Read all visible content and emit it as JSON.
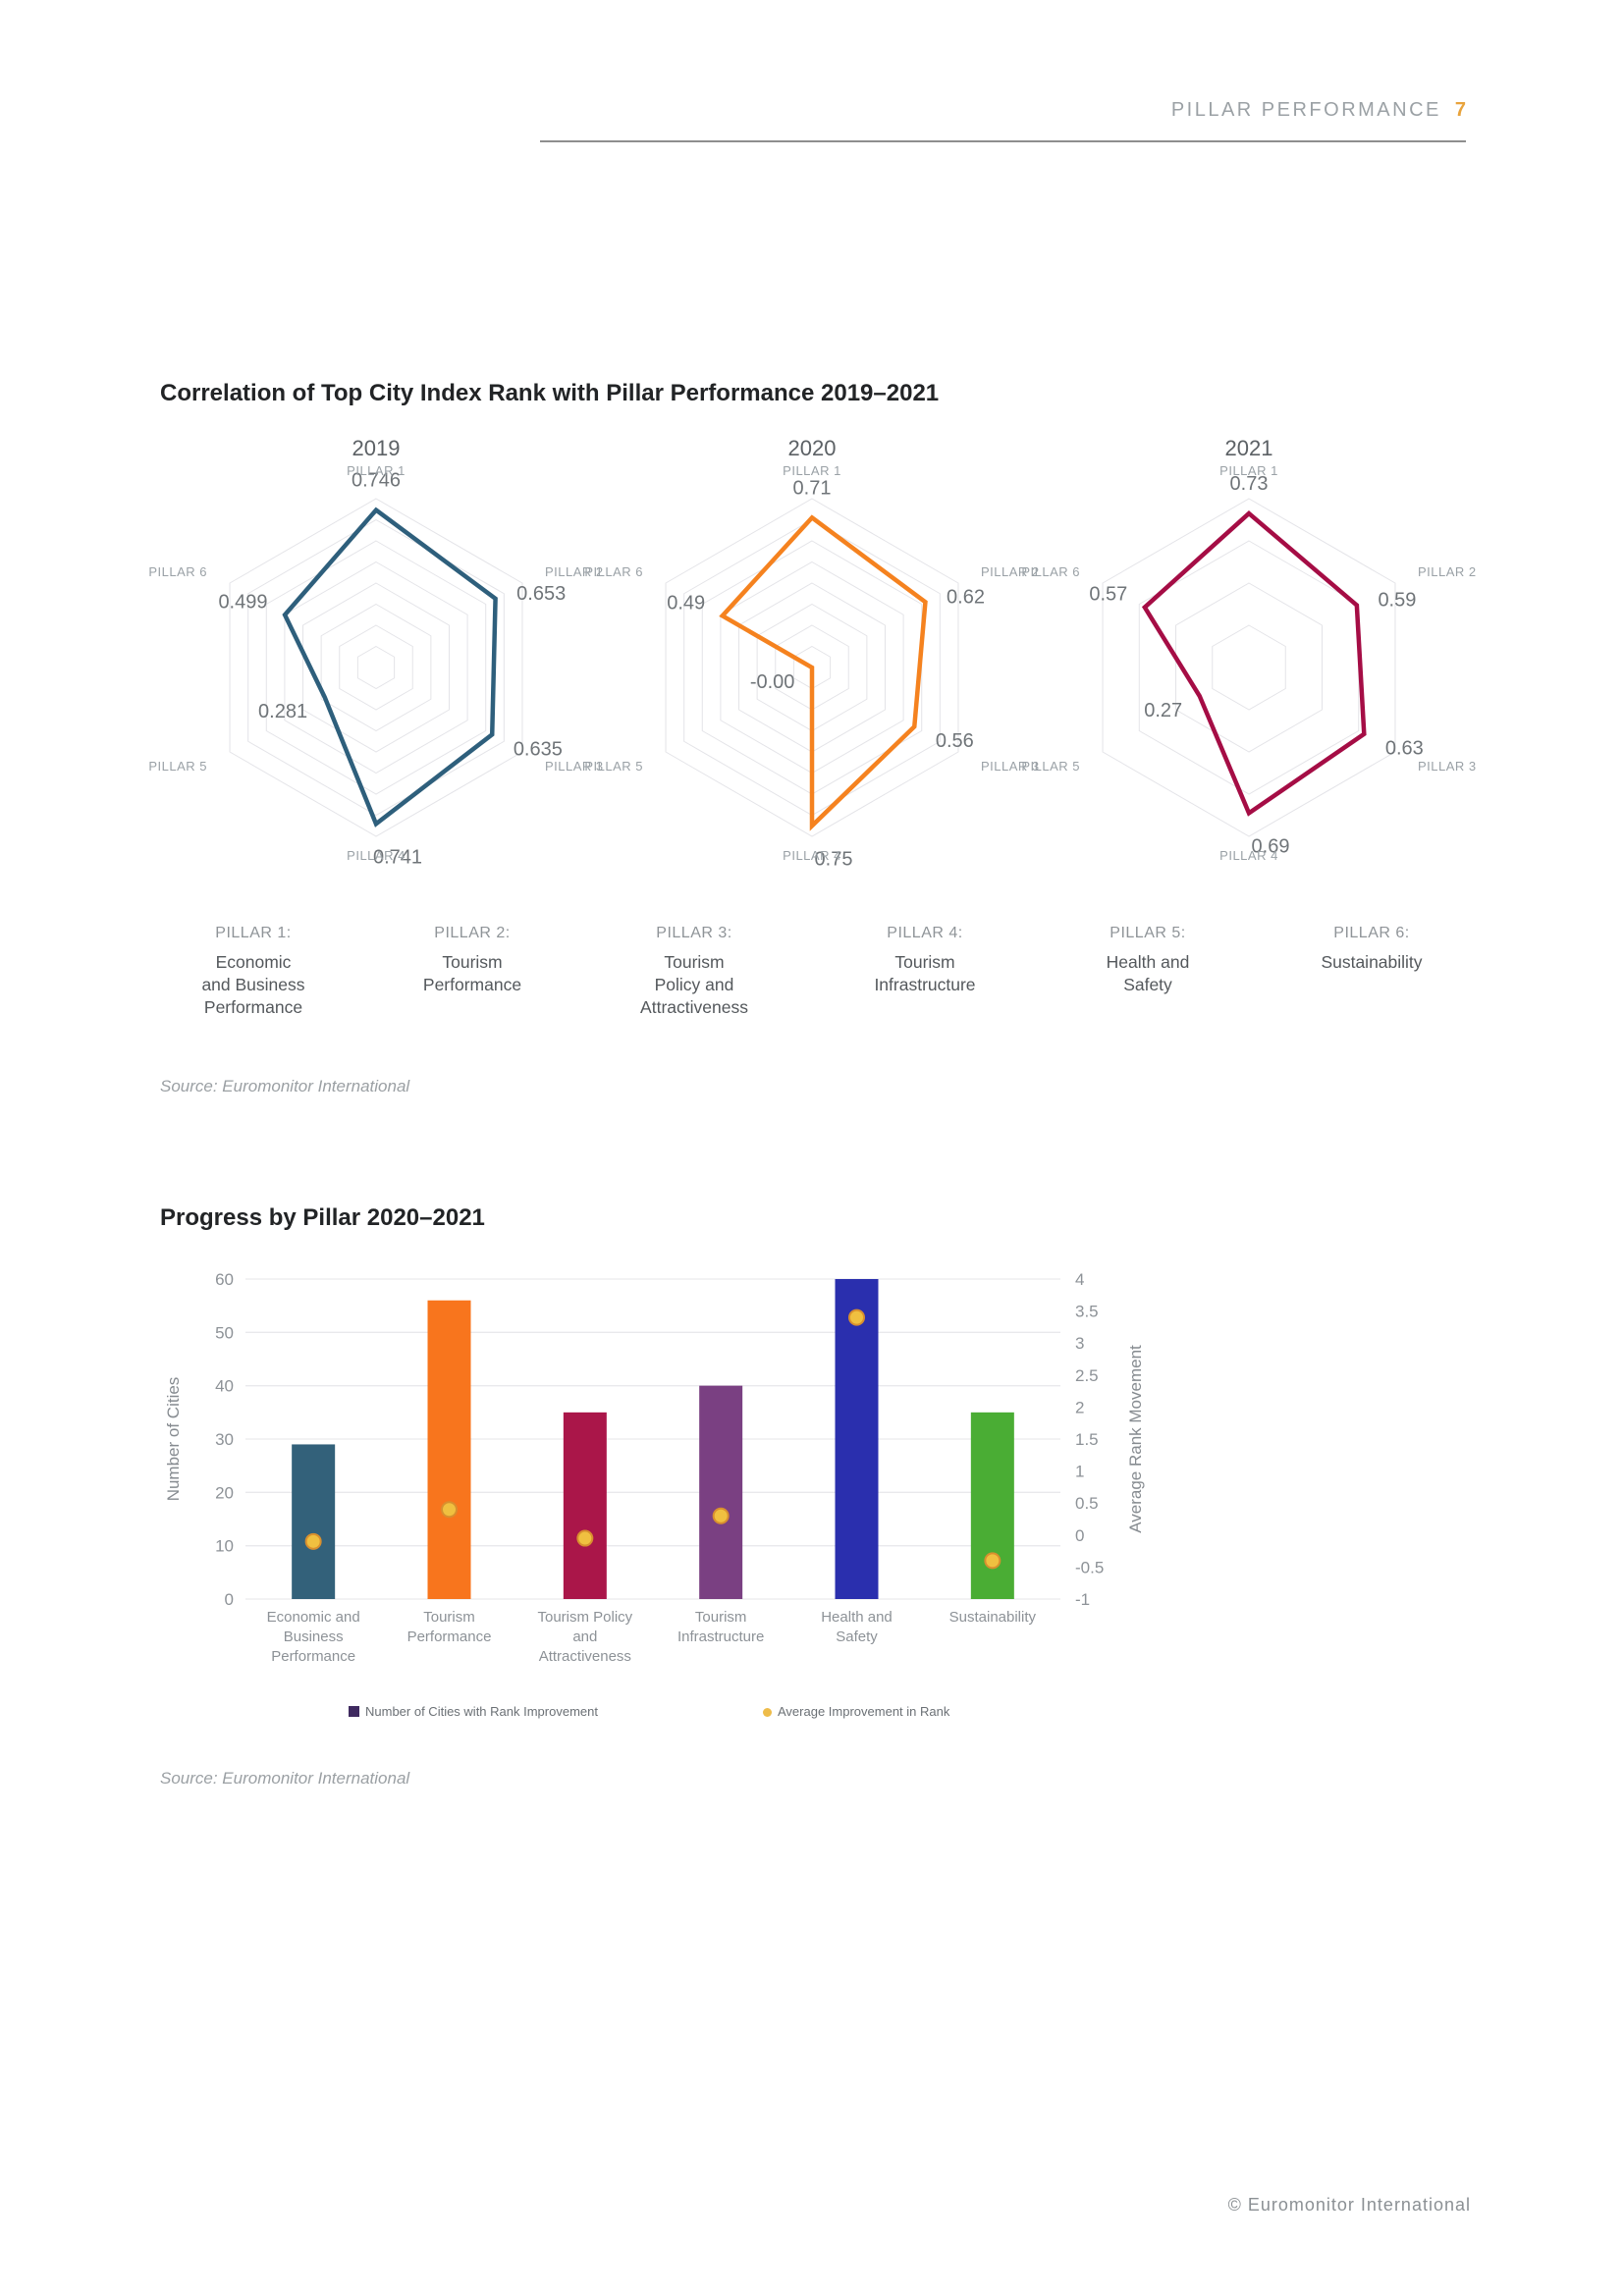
{
  "header": {
    "section_title": "PILLAR PERFORMANCE",
    "page_number": "7",
    "accent_color": "#e8a33c"
  },
  "correlation_section": {
    "title": "Correlation of Top City Index Rank with Pillar Performance 2019–2021",
    "source": "Source: Euromonitor International",
    "pillar_definitions": [
      {
        "label": "PILLAR 1:",
        "name_lines": [
          "Economic",
          "and Business",
          "Performance"
        ]
      },
      {
        "label": "PILLAR 2:",
        "name_lines": [
          "Tourism",
          "Performance"
        ]
      },
      {
        "label": "PILLAR 3:",
        "name_lines": [
          "Tourism",
          "Policy and",
          "Attractiveness"
        ]
      },
      {
        "label": "PILLAR 4:",
        "name_lines": [
          "Tourism",
          "Infrastructure"
        ]
      },
      {
        "label": "PILLAR 5:",
        "name_lines": [
          "Health and",
          "Safety"
        ]
      },
      {
        "label": "PILLAR 6:",
        "name_lines": [
          "Sustainability"
        ]
      }
    ]
  },
  "progress_section": {
    "title": "Progress by Pillar 2020–2021",
    "source": "Source: Euromonitor International",
    "legend": [
      {
        "label": "Number of Cities with Rank Improvement",
        "marker": "square",
        "color": "#3f2a60"
      },
      {
        "label": "Average Improvement in Rank",
        "marker": "dot",
        "color": "#eebc4a"
      }
    ]
  },
  "footer": {
    "copyright": "© Euromonitor International"
  },
  "chart_data": [
    {
      "type": "radar",
      "title": "2019",
      "color": "#2e5f7c",
      "rings": 8,
      "axis_max": 0.8,
      "axes": [
        "PILLAR 1",
        "PILLAR 2",
        "PILLAR 3",
        "PILLAR 4",
        "PILLAR 5",
        "PILLAR 6"
      ],
      "values": [
        0.746,
        0.653,
        0.635,
        0.741,
        0.281,
        0.499
      ],
      "value_labels": [
        "0.746",
        "0.653",
        "0.635",
        "0.741",
        "0.281",
        "0.499"
      ]
    },
    {
      "type": "radar",
      "title": "2020",
      "color": "#f5821f",
      "rings": 8,
      "axis_max": 0.8,
      "axes": [
        "PILLAR 1",
        "PILLAR 2",
        "PILLAR 3",
        "PILLAR 4",
        "PILLAR 5",
        "PILLAR 6"
      ],
      "values": [
        0.71,
        0.62,
        0.56,
        0.75,
        -0.0,
        0.49
      ],
      "value_labels": [
        "0.71",
        "0.62",
        "0.56",
        "0.75",
        "-0.00",
        "0.49"
      ]
    },
    {
      "type": "radar",
      "title": "2021",
      "color": "#a50d45",
      "rings": 4,
      "axis_max": 0.8,
      "axes": [
        "PILLAR 1",
        "PILLAR 2",
        "PILLAR 3",
        "PILLAR 4",
        "PILLAR 5",
        "PILLAR 6"
      ],
      "values": [
        0.73,
        0.59,
        0.63,
        0.69,
        0.27,
        0.57
      ],
      "value_labels": [
        "0.73",
        "0.59",
        "0.63",
        "0.69",
        "0.27",
        "0.57"
      ]
    },
    {
      "type": "bar",
      "title": "Progress by Pillar 2020–2021",
      "categories": [
        "Economic and Business Performance",
        "Tourism Performance",
        "Tourism Policy and Attractiveness",
        "Tourism Infrastructure",
        "Health and Safety",
        "Sustainability"
      ],
      "category_label_lines": [
        [
          "Economic and",
          "Business",
          "Performance"
        ],
        [
          "Tourism",
          "Performance"
        ],
        [
          "Tourism Policy",
          "and",
          "Attractiveness"
        ],
        [
          "Tourism",
          "Infrastructure"
        ],
        [
          "Health and",
          "Safety"
        ],
        [
          "Sustainability"
        ]
      ],
      "series": [
        {
          "name": "Number of Cities with Rank Improvement",
          "type": "bar",
          "axis": "left",
          "values": [
            29,
            56,
            35,
            40,
            60,
            35
          ],
          "colors": [
            "#33617a",
            "#f8751d",
            "#aa1649",
            "#7a4082",
            "#2a2fae",
            "#4aad34"
          ]
        },
        {
          "name": "Average Improvement in Rank",
          "type": "scatter",
          "axis": "right",
          "values": [
            -0.1,
            0.4,
            -0.05,
            0.3,
            3.4,
            -0.4
          ],
          "color": "#f0c040",
          "stroke": "#d88f2e"
        }
      ],
      "left_axis": {
        "label": "Number of Cities",
        "min": 0,
        "max": 60,
        "ticks": [
          60,
          50,
          40,
          30,
          20,
          10,
          0
        ]
      },
      "right_axis": {
        "label": "Average Rank Movement",
        "min": -1,
        "max": 4,
        "ticks": [
          4,
          3.5,
          3,
          2.5,
          2,
          1.5,
          1,
          0.5,
          0,
          -0.5,
          -1
        ]
      },
      "grid": true
    }
  ]
}
